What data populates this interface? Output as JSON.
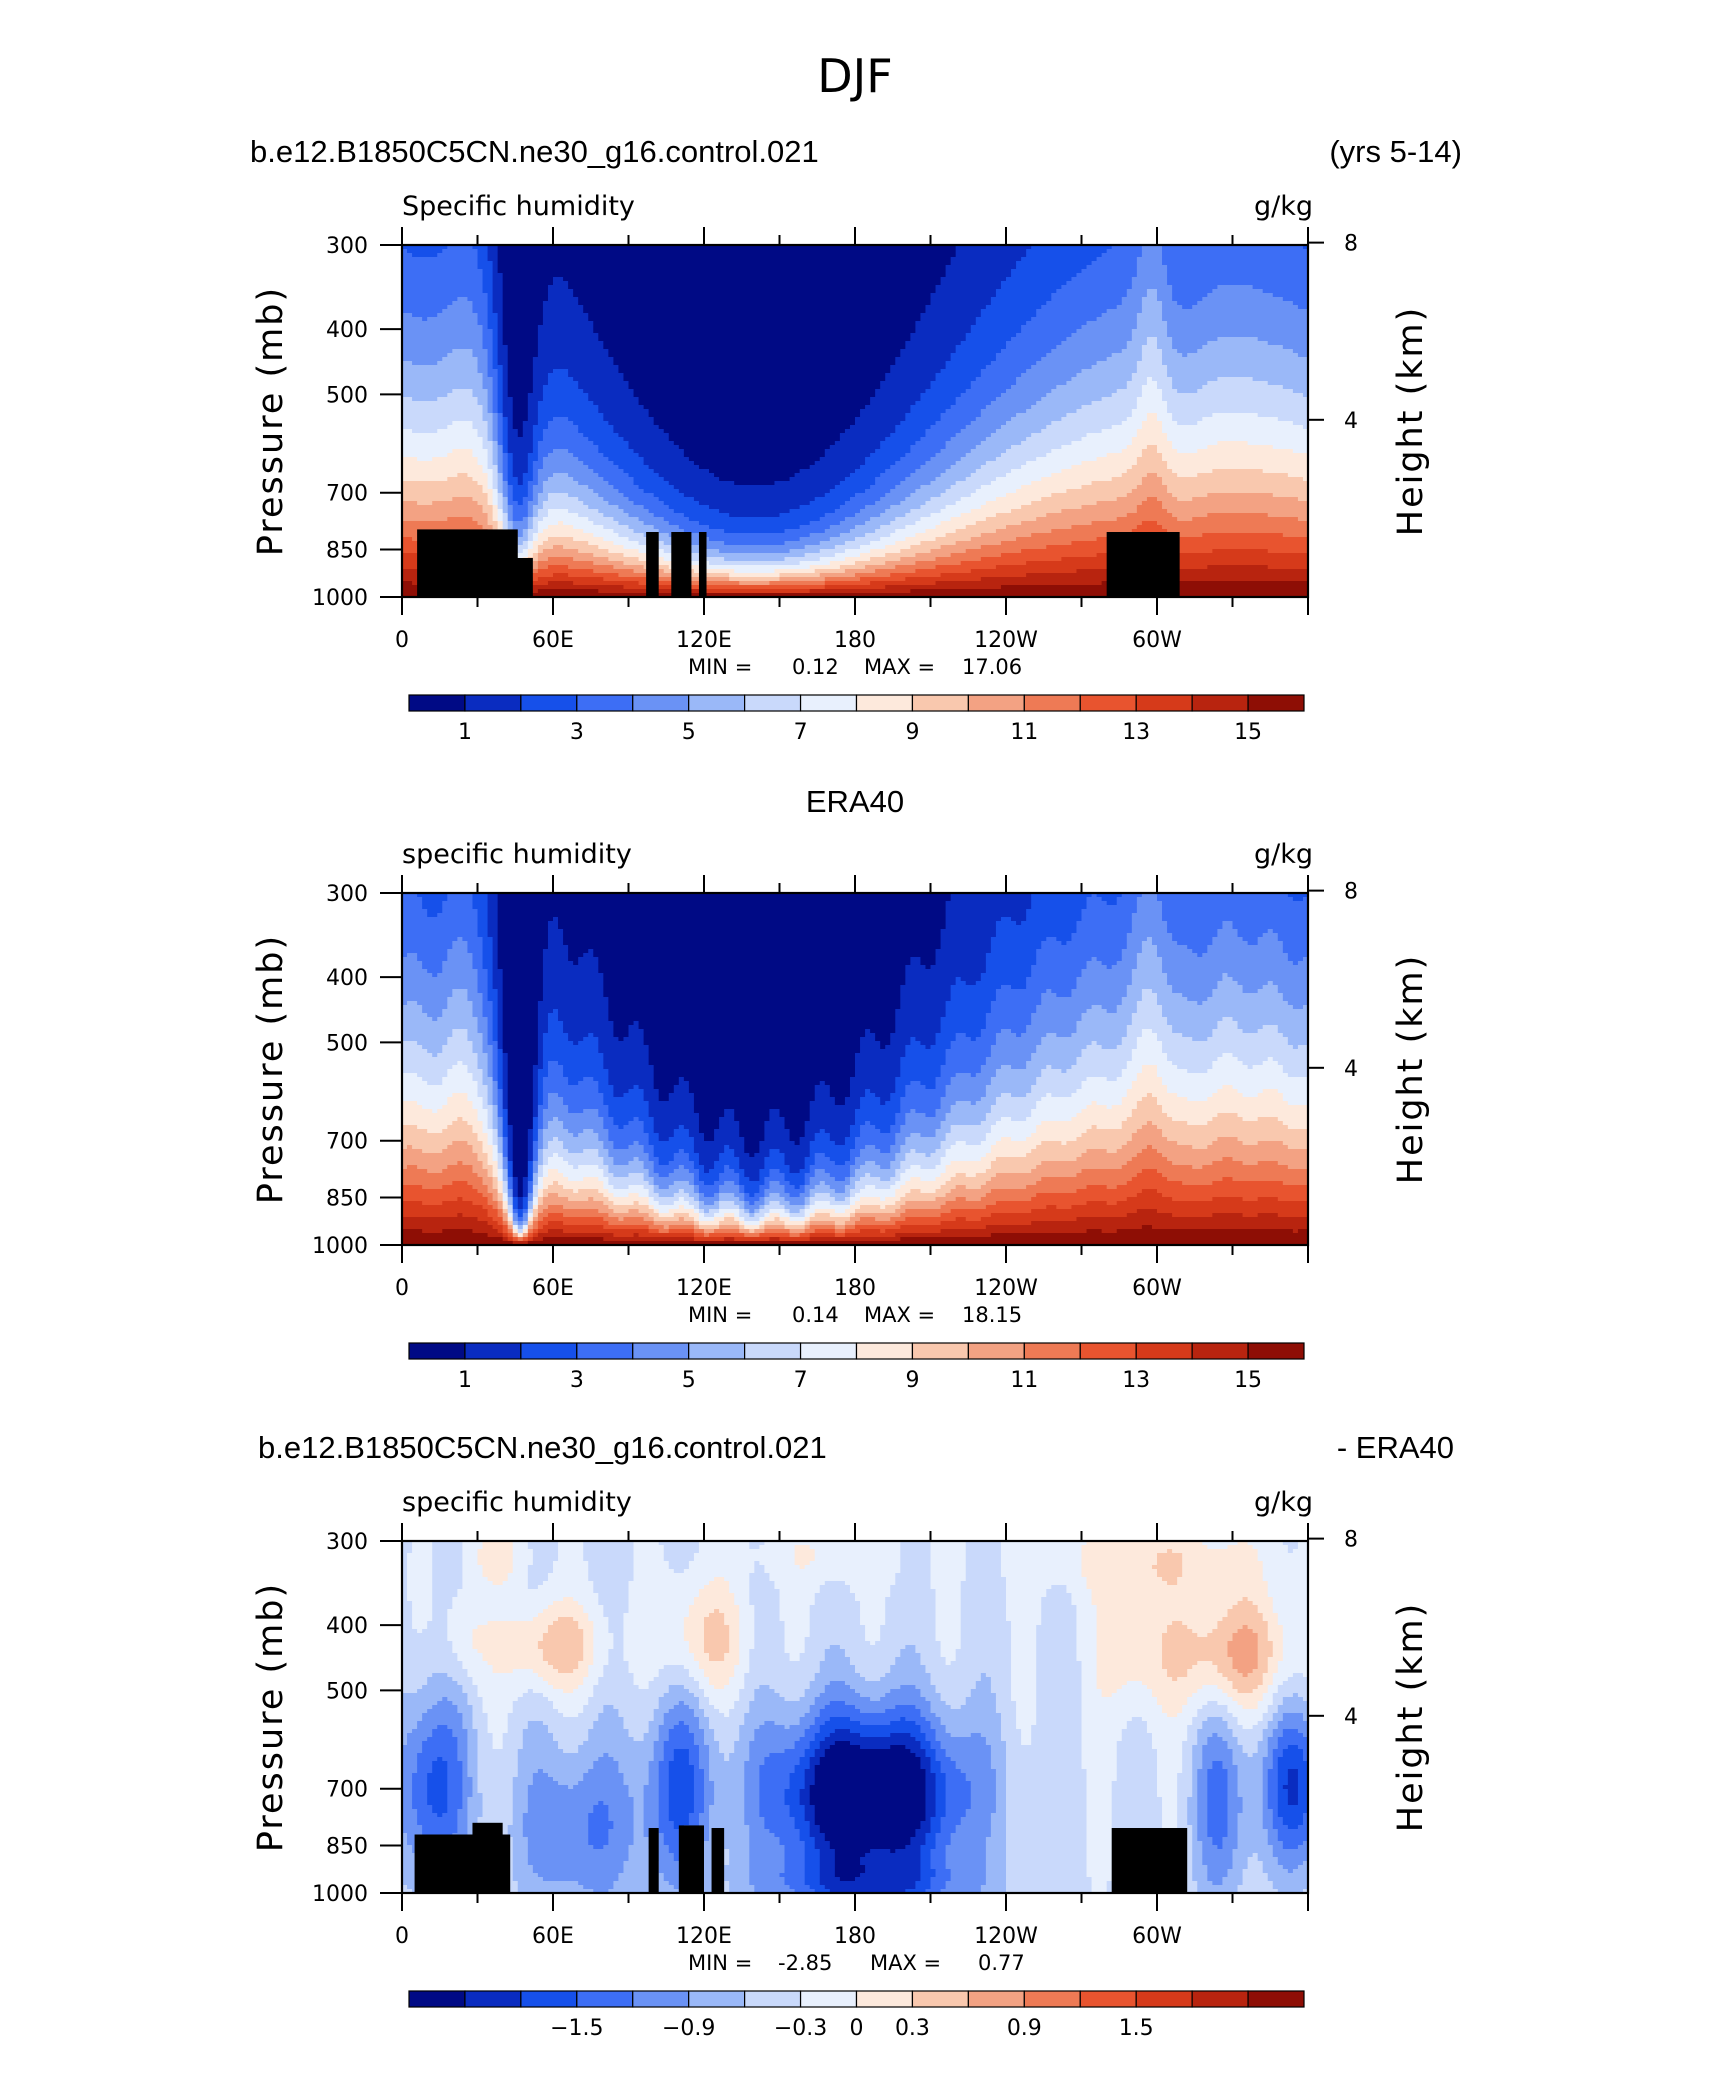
{
  "figure": {
    "title": "DJF"
  },
  "chart_data": [
    {
      "type": "heatmap",
      "id": "model",
      "header_left": "b.e12.B1850C5CN.ne30_g16.control.021",
      "header_right": "(yrs 5-14)",
      "variable_label": "Specific humidity",
      "units": "g/kg",
      "ylabel": "Pressure (mb)",
      "ylabel_right": "Height (km)",
      "pressure_ticks": [
        "300",
        "400",
        "500",
        "700",
        "850",
        "1000"
      ],
      "height_ticks": [
        "8",
        "4"
      ],
      "x_tick_labels": [
        "0",
        "60E",
        "120E",
        "180",
        "120W",
        "60W"
      ],
      "ylim": [
        1000,
        300
      ],
      "xlim": [
        0,
        360
      ],
      "min_label": "MIN =",
      "min_value": "0.12",
      "max_label": "MAX =",
      "max_value": "17.06",
      "colorbar_labels": [
        "1",
        "3",
        "5",
        "7",
        "9",
        "11",
        "13",
        "15"
      ],
      "colorbar_levels": [
        0,
        1,
        2,
        3,
        4,
        5,
        6,
        7,
        8,
        9,
        10,
        11,
        12,
        13,
        14,
        15,
        16
      ],
      "colors": [
        "#000a85",
        "#0a2cc0",
        "#1650ea",
        "#3d6ef5",
        "#6a92f5",
        "#9ab8f8",
        "#c9d9fb",
        "#e8f0fd",
        "#fde9dc",
        "#f9c8ae",
        "#f3a283",
        "#ee7a55",
        "#e8542f",
        "#d63a1a",
        "#b8240f",
        "#8e0e05"
      ],
      "topography": true
    },
    {
      "type": "heatmap",
      "id": "obs",
      "header_center": "ERA40",
      "variable_label": "specific humidity",
      "units": "g/kg",
      "ylabel": "Pressure (mb)",
      "ylabel_right": "Height (km)",
      "pressure_ticks": [
        "300",
        "400",
        "500",
        "700",
        "850",
        "1000"
      ],
      "height_ticks": [
        "8",
        "4"
      ],
      "x_tick_labels": [
        "0",
        "60E",
        "120E",
        "180",
        "120W",
        "60W"
      ],
      "ylim": [
        1000,
        300
      ],
      "xlim": [
        0,
        360
      ],
      "min_label": "MIN =",
      "min_value": "0.14",
      "max_label": "MAX =",
      "max_value": "18.15",
      "colorbar_labels": [
        "1",
        "3",
        "5",
        "7",
        "9",
        "11",
        "13",
        "15"
      ],
      "colorbar_levels": [
        0,
        1,
        2,
        3,
        4,
        5,
        6,
        7,
        8,
        9,
        10,
        11,
        12,
        13,
        14,
        15,
        16
      ],
      "colors": [
        "#000a85",
        "#0a2cc0",
        "#1650ea",
        "#3d6ef5",
        "#6a92f5",
        "#9ab8f8",
        "#c9d9fb",
        "#e8f0fd",
        "#fde9dc",
        "#f9c8ae",
        "#f3a283",
        "#ee7a55",
        "#e8542f",
        "#d63a1a",
        "#b8240f",
        "#8e0e05"
      ],
      "topography": false
    },
    {
      "type": "heatmap",
      "id": "diff",
      "header_left": "b.e12.B1850C5CN.ne30_g16.control.021",
      "header_right": "- ERA40",
      "variable_label": "specific humidity",
      "units": "g/kg",
      "ylabel": "Pressure (mb)",
      "ylabel_right": "Height (km)",
      "pressure_ticks": [
        "300",
        "400",
        "500",
        "700",
        "850",
        "1000"
      ],
      "height_ticks": [
        "8",
        "4"
      ],
      "x_tick_labels": [
        "0",
        "60E",
        "120E",
        "180",
        "120W",
        "60W"
      ],
      "ylim": [
        1000,
        300
      ],
      "xlim": [
        0,
        360
      ],
      "min_label": "MIN =",
      "min_value": "-2.85",
      "max_label": "MAX =",
      "max_value": "0.77",
      "colorbar_labels": [
        "−1.5",
        "−0.9",
        "−0.3",
        "0",
        "0.3",
        "0.9",
        "1.5"
      ],
      "colorbar_levels": [
        -2.4,
        -2.1,
        -1.8,
        -1.5,
        -1.2,
        -0.9,
        -0.6,
        -0.3,
        0,
        0.3,
        0.6,
        0.9,
        1.2,
        1.5,
        1.8,
        2.1,
        2.4
      ],
      "colors": [
        "#000a85",
        "#0a2cc0",
        "#1650ea",
        "#3d6ef5",
        "#6a92f5",
        "#9ab8f8",
        "#c9d9fb",
        "#e8f0fd",
        "#fde9dc",
        "#f9c8ae",
        "#f3a283",
        "#ee7a55",
        "#e8542f",
        "#d63a1a",
        "#b8240f",
        "#8e0e05"
      ],
      "topography": true
    }
  ]
}
